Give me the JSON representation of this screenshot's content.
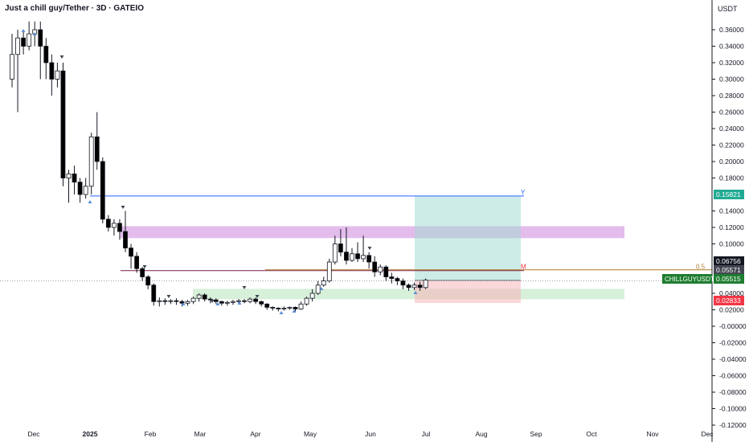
{
  "header": {
    "title": "Just a chill guy/Tether · 3D · GATEIO"
  },
  "axis": {
    "currency": "USDT"
  },
  "colors": {
    "up": "#ffffff",
    "up_border": "#131722",
    "down": "#000000",
    "grid_text": "#131722",
    "blue_line": "#2962ff",
    "pink_zone": "#d9a6e6",
    "green_zone": "#cdeccf",
    "teal_zone": "#9ed9cf",
    "red_zone": "#f6b6ba",
    "price_badge": "#1e7d2f",
    "red_badge": "#f23645",
    "teal_badge": "#22ab94",
    "dark_badge": "#131722",
    "gray_badge": "#434651"
  },
  "chart_data": {
    "type": "candlestick",
    "symbol": "CHILLGUYUSDT",
    "ylim": [
      -0.125,
      0.37
    ],
    "y_ticks": [
      "0.36000",
      "0.34000",
      "0.32000",
      "0.30000",
      "0.28000",
      "0.26000",
      "0.24000",
      "0.22000",
      "0.20000",
      "0.18000",
      "0.14000",
      "0.12000",
      "0.10000",
      "0.04000",
      "0.02000",
      "-0.00000",
      "-0.02000",
      "-0.04000",
      "-0.06000",
      "-0.08000",
      "-0.10000",
      "-0.12000"
    ],
    "x_labels": [
      "Dec",
      "2025",
      "Feb",
      "Mar",
      "Apr",
      "May",
      "Jun",
      "Jul",
      "Aug",
      "Sep",
      "Oct",
      "Nov",
      "Dec"
    ],
    "candles": [
      [
        0.3,
        0.33,
        0.29,
        0.355
      ],
      [
        0.33,
        0.35,
        0.26,
        0.36
      ],
      [
        0.35,
        0.34,
        0.33,
        0.36
      ],
      [
        0.34,
        0.355,
        0.335,
        0.37
      ],
      [
        0.355,
        0.36,
        0.34,
        0.37
      ],
      [
        0.36,
        0.34,
        0.3,
        0.37
      ],
      [
        0.34,
        0.32,
        0.3,
        0.35
      ],
      [
        0.32,
        0.3,
        0.28,
        0.33
      ],
      [
        0.3,
        0.31,
        0.29,
        0.32
      ],
      [
        0.31,
        0.18,
        0.17,
        0.32
      ],
      [
        0.18,
        0.185,
        0.15,
        0.19
      ],
      [
        0.185,
        0.175,
        0.16,
        0.195
      ],
      [
        0.175,
        0.16,
        0.15,
        0.18
      ],
      [
        0.16,
        0.17,
        0.155,
        0.18
      ],
      [
        0.17,
        0.23,
        0.16,
        0.235
      ],
      [
        0.23,
        0.2,
        0.19,
        0.26
      ],
      [
        0.2,
        0.13,
        0.125,
        0.205
      ],
      [
        0.13,
        0.12,
        0.115,
        0.135
      ],
      [
        0.12,
        0.125,
        0.11,
        0.13
      ],
      [
        0.125,
        0.115,
        0.105,
        0.13
      ],
      [
        0.115,
        0.095,
        0.09,
        0.14
      ],
      [
        0.095,
        0.085,
        0.07,
        0.1
      ],
      [
        0.085,
        0.07,
        0.065,
        0.09
      ],
      [
        0.07,
        0.06,
        0.055,
        0.072
      ],
      [
        0.06,
        0.05,
        0.045,
        0.062
      ],
      [
        0.05,
        0.03,
        0.025,
        0.052
      ],
      [
        0.03,
        0.031,
        0.024,
        0.035
      ],
      [
        0.031,
        0.03,
        0.026,
        0.034
      ],
      [
        0.03,
        0.031,
        0.027,
        0.033
      ],
      [
        0.031,
        0.03,
        0.026,
        0.034
      ],
      [
        0.03,
        0.028,
        0.024,
        0.032
      ],
      [
        0.028,
        0.03,
        0.025,
        0.032
      ],
      [
        0.03,
        0.034,
        0.027,
        0.036
      ],
      [
        0.034,
        0.038,
        0.03,
        0.04
      ],
      [
        0.038,
        0.033,
        0.03,
        0.04
      ],
      [
        0.033,
        0.032,
        0.028,
        0.035
      ],
      [
        0.032,
        0.03,
        0.027,
        0.034
      ],
      [
        0.03,
        0.028,
        0.025,
        0.031
      ],
      [
        0.028,
        0.029,
        0.025,
        0.031
      ],
      [
        0.029,
        0.03,
        0.026,
        0.032
      ],
      [
        0.03,
        0.031,
        0.027,
        0.033
      ],
      [
        0.031,
        0.03,
        0.028,
        0.033
      ],
      [
        0.03,
        0.033,
        0.028,
        0.035
      ],
      [
        0.033,
        0.03,
        0.027,
        0.035
      ],
      [
        0.03,
        0.027,
        0.024,
        0.031
      ],
      [
        0.027,
        0.023,
        0.02,
        0.028
      ],
      [
        0.023,
        0.022,
        0.019,
        0.024
      ],
      [
        0.022,
        0.021,
        0.018,
        0.023
      ],
      [
        0.021,
        0.022,
        0.019,
        0.024
      ],
      [
        0.022,
        0.023,
        0.02,
        0.024
      ],
      [
        0.023,
        0.021,
        0.018,
        0.024
      ],
      [
        0.021,
        0.027,
        0.02,
        0.03
      ],
      [
        0.027,
        0.034,
        0.025,
        0.036
      ],
      [
        0.034,
        0.04,
        0.03,
        0.045
      ],
      [
        0.04,
        0.05,
        0.038,
        0.055
      ],
      [
        0.05,
        0.055,
        0.048,
        0.06
      ],
      [
        0.055,
        0.078,
        0.053,
        0.082
      ],
      [
        0.078,
        0.1,
        0.075,
        0.11
      ],
      [
        0.1,
        0.09,
        0.085,
        0.118
      ],
      [
        0.09,
        0.08,
        0.075,
        0.12
      ],
      [
        0.08,
        0.088,
        0.078,
        0.095
      ],
      [
        0.088,
        0.082,
        0.078,
        0.102
      ],
      [
        0.082,
        0.086,
        0.078,
        0.11
      ],
      [
        0.086,
        0.078,
        0.07,
        0.09
      ],
      [
        0.078,
        0.066,
        0.06,
        0.085
      ],
      [
        0.066,
        0.072,
        0.062,
        0.075
      ],
      [
        0.072,
        0.06,
        0.055,
        0.074
      ],
      [
        0.06,
        0.058,
        0.052,
        0.065
      ],
      [
        0.058,
        0.055,
        0.05,
        0.06
      ],
      [
        0.055,
        0.05,
        0.045,
        0.058
      ],
      [
        0.05,
        0.047,
        0.043,
        0.052
      ],
      [
        0.047,
        0.05,
        0.044,
        0.053
      ],
      [
        0.05,
        0.047,
        0.043,
        0.054
      ],
      [
        0.047,
        0.056,
        0.045,
        0.058
      ]
    ],
    "levels": [
      {
        "label": "Y",
        "value": 0.1582
      },
      {
        "label": "M",
        "value": 0.0676
      },
      {
        "label": "0.5",
        "value": 0.0676
      }
    ],
    "zones": [
      {
        "name": "resistance-zone",
        "top": 0.1215,
        "bottom": 0.107
      },
      {
        "name": "support-zone",
        "top": 0.0455,
        "bottom": 0.0328
      },
      {
        "name": "target-zone",
        "top": 0.1582,
        "bottom": 0.0557
      },
      {
        "name": "stop-zone",
        "top": 0.0557,
        "bottom": 0.0283
      }
    ],
    "price_badges": [
      {
        "value": "0.15821",
        "kind": "teal"
      },
      {
        "value": "0.06756",
        "kind": "dark"
      },
      {
        "value": "0.05571",
        "kind": "gray"
      },
      {
        "value": "0.05515",
        "kind": "green",
        "symbol": "CHILLGUYUSDT"
      },
      {
        "value": "0.02833",
        "kind": "red"
      }
    ]
  }
}
